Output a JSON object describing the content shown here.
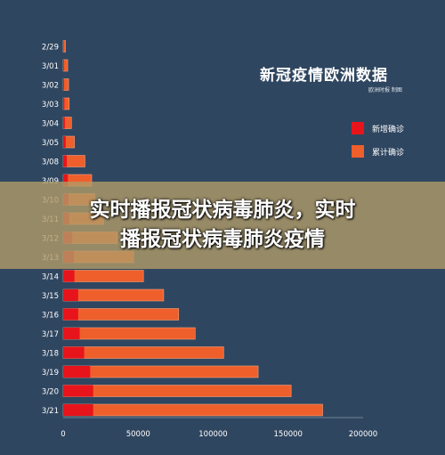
{
  "header": {
    "title": "新冠疫情欧洲数据",
    "subtitle": "欧洲时报 制图"
  },
  "banner": {
    "line1": "实时播报冠状病毒肺炎，实时",
    "line2": "播报冠状病毒肺炎疫情"
  },
  "colors": {
    "background": "#2f4660",
    "new_cases": "#e8141c",
    "cumulative": "#ee5f2b",
    "axis": "#6e8196",
    "tick_text": "#ffffff"
  },
  "chart_data": {
    "type": "bar",
    "orientation": "horizontal",
    "stacked": "overlay",
    "categories": [
      "2/29",
      "3/01",
      "3/02",
      "3/03",
      "3/04",
      "3/05",
      "3/08",
      "3/09",
      "3/10",
      "3/11",
      "3/12",
      "3/13",
      "3/14",
      "3/15",
      "3/16",
      "3/17",
      "3/18",
      "3/19",
      "3/20",
      "3/21"
    ],
    "series": [
      {
        "name": "新增确诊",
        "color": "#e8141c",
        "values": [
          250,
          450,
          600,
          800,
          1100,
          1700,
          2400,
          3100,
          3500,
          4000,
          6000,
          7000,
          7500,
          10000,
          10000,
          11000,
          14000,
          18000,
          20000,
          20000
        ]
      },
      {
        "name": "累计确诊",
        "color": "#ee5f2b",
        "values": [
          1500,
          3000,
          3600,
          4000,
          5500,
          7500,
          14500,
          19000,
          21000,
          27000,
          36000,
          47000,
          53500,
          67000,
          77000,
          88000,
          107000,
          130000,
          152000,
          173000
        ]
      }
    ],
    "xlim": [
      0,
      200000
    ],
    "xticks": [
      0,
      50000,
      100000,
      150000,
      200000
    ],
    "grid": false,
    "legend": "right"
  }
}
